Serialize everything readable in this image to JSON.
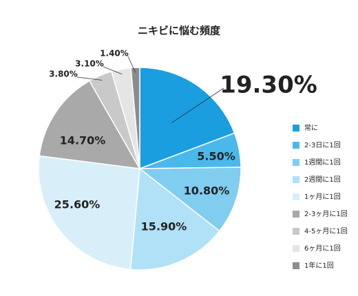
{
  "chart_data": {
    "type": "pie",
    "title": "ニキビに悩む頻度",
    "categories": [
      "常に",
      "2-3日に1回",
      "1週間に1回",
      "2週間に1回",
      "1ヶ月に1回",
      "2-3ヶ月に1回",
      "4-5ヶ月に1回",
      "6ヶ月に1回",
      "1年に1回"
    ],
    "values": [
      19.3,
      5.5,
      10.8,
      15.9,
      25.6,
      14.7,
      3.8,
      3.1,
      1.4
    ],
    "value_labels": [
      "19.30%",
      "5.50%",
      "10.80%",
      "15.90%",
      "25.60%",
      "14.70%",
      "3.80%",
      "3.10%",
      "1.40%"
    ],
    "colors": [
      "#1a9ee0",
      "#4bb8ec",
      "#80cdf0",
      "#b0e1f6",
      "#d8eff9",
      "#a9a9a9",
      "#c9c9c9",
      "#e5e5e5",
      "#8c8c8c"
    ],
    "legend": "right"
  }
}
